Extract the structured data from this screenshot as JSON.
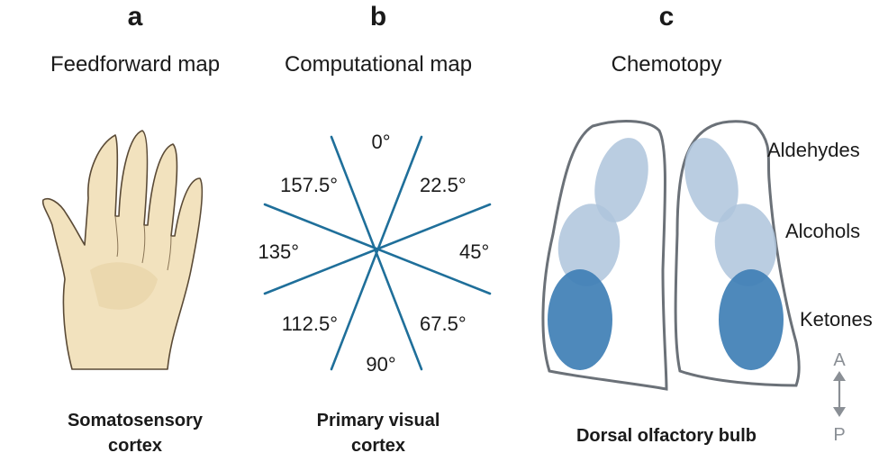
{
  "panels": [
    {
      "letter": "a",
      "title": "Feedforward map",
      "caption_line1": "Somatosensory",
      "caption_line2": "cortex"
    },
    {
      "letter": "b",
      "title": "Computational map",
      "caption_line1": "Primary visual",
      "caption_line2": "cortex",
      "orientations": [
        "0°",
        "22.5°",
        "45°",
        "67.5°",
        "90°",
        "112.5°",
        "135°",
        "157.5°"
      ]
    },
    {
      "letter": "c",
      "title": "Chemotopy",
      "caption_line1": "Dorsal olfactory bulb",
      "odorants": [
        "Aldehydes",
        "Alcohols",
        "Ketones"
      ],
      "axis_anterior": "A",
      "axis_posterior": "P"
    }
  ],
  "colors": {
    "orientation_lines": "#1f6f9a",
    "bulb_outline": "#6b7178",
    "zone_light": "#aec4dc",
    "zone_dark": "#3f7fb5",
    "skin": "#f2e2be"
  }
}
